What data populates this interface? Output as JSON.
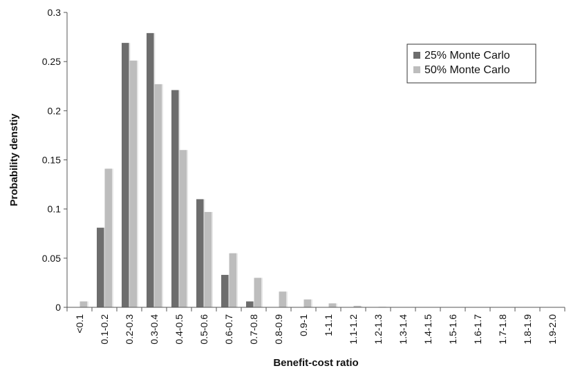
{
  "chart_data": {
    "type": "bar",
    "xlabel": "Benefit-cost ratio",
    "ylabel": "Probability denstiy",
    "ylim": [
      0,
      0.3
    ],
    "yticks": [
      "0",
      "0.05",
      "0.1",
      "0.15",
      "0.2",
      "0.25",
      "0.3"
    ],
    "ytick_values": [
      0,
      0.05,
      0.1,
      0.15,
      0.2,
      0.25,
      0.3
    ],
    "legend_position": "top-right",
    "grid": false,
    "categories": [
      "<0.1",
      "0.1-0.2",
      "0.2-0.3",
      "0.3-0.4",
      "0.4-0.5",
      "0.5-0.6",
      "0.6-0.7",
      "0.7-0.8",
      "0.8-0.9",
      "0.9-1",
      "1-1.1",
      "1.1-1.2",
      "1.2-1.3",
      "1.3-1.4",
      "1.4-1.5",
      "1.5-1.6",
      "1.6-1.7",
      "1.7-1.8",
      "1.8-1.9",
      "1.9-2.0"
    ],
    "series": [
      {
        "name": "25% Monte Carlo",
        "color": "#6d6d6d",
        "values": [
          0,
          0.081,
          0.269,
          0.279,
          0.221,
          0.11,
          0.033,
          0.006,
          0,
          0,
          0,
          0,
          0,
          0,
          0,
          0,
          0,
          0,
          0,
          0
        ]
      },
      {
        "name": "50% Monte Carlo",
        "color": "#bdbdbd",
        "values": [
          0.006,
          0.141,
          0.251,
          0.227,
          0.16,
          0.097,
          0.055,
          0.03,
          0.016,
          0.008,
          0.004,
          0.0015,
          0.0005,
          0.0002,
          0,
          0,
          0,
          0,
          0,
          0
        ]
      }
    ]
  }
}
